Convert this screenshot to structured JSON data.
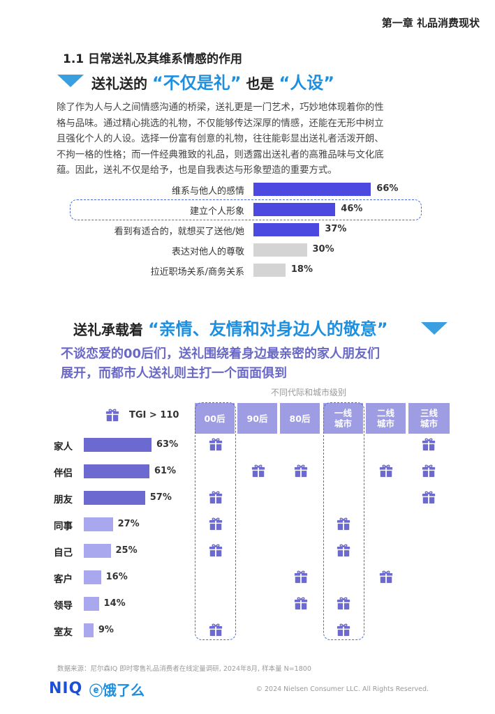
{
  "chapter": "第一章 礼品消费现状",
  "section_title": "1.1 日常送礼及其维系情感的作用",
  "headline1": {
    "prefix": "送礼送的",
    "highlight1": "“不仅是礼”",
    "middle": "也是",
    "highlight2": "“人设”"
  },
  "paragraph": [
    "除了作为人与人之间情感沟通的桥梁，送礼更是一门艺术，巧妙地体现着你的性",
    "格与品味。通过精心挑选的礼物，不仅能够传达深厚的情感，还能在无形中树立",
    "且强化个人的人设。选择一份富有创意的礼物，往往能彰显出送礼者活泼开朗、",
    "不拘一格的性格；而一件经典雅致的礼品，则透露出送礼者的高雅品味与文化底",
    "蕴。因此，送礼不仅是给予，也是自我表达与形象塑造的重要方式。"
  ],
  "motive_chart": {
    "type": "bar",
    "categories": [
      "维系与他人的感情",
      "建立个人形象",
      "看到有适合的，就想买了送他/她",
      "表达对他人的尊敬",
      "拉近职场关系/商务关系"
    ],
    "values": [
      66,
      46,
      37,
      30,
      18
    ],
    "labels": [
      "66%",
      "46%",
      "37%",
      "30%",
      "18%"
    ],
    "colors": [
      "#4b49e0",
      "#4b49e0",
      "#4b49e0",
      "#d4d4d4",
      "#d4d4d4"
    ],
    "highlighted": "建立个人形象"
  },
  "headline2": {
    "prefix": "送礼承载着",
    "highlight": "“亲情、友情和对身边人的敬意”"
  },
  "subheadline": [
    "不谈恋爱的00后们，送礼围绕着身边最亲密的家人朋友们",
    "展开，而都市人送礼则主打一个面面俱到"
  ],
  "recipients_chart": {
    "type": "bar",
    "group_header_title": "不同代际和城市级别",
    "legend": "TGI > 110",
    "categories": [
      "家人",
      "伴侣",
      "朋友",
      "同事",
      "自己",
      "客户",
      "领导",
      "室友"
    ],
    "values": [
      63,
      61,
      57,
      27,
      25,
      16,
      14,
      9
    ],
    "labels": [
      "63%",
      "61%",
      "57%",
      "27%",
      "25%",
      "16%",
      "14%",
      "9%"
    ],
    "colors": [
      "#6c6ad0",
      "#6c6ad0",
      "#6c6ad0",
      "#a9a7ee",
      "#a9a7ee",
      "#a9a7ee",
      "#a9a7ee",
      "#a9a7ee"
    ],
    "columns": [
      {
        "line1": "00后",
        "line2": ""
      },
      {
        "line1": "90后",
        "line2": ""
      },
      {
        "line1": "80后",
        "line2": ""
      },
      {
        "line1": "一线",
        "line2": "城市"
      },
      {
        "line1": "二线",
        "line2": "城市"
      },
      {
        "line1": "三线",
        "line2": "城市"
      }
    ],
    "highlighted_columns": [
      "00后",
      "一线城市"
    ],
    "tgi_matrix": [
      [
        1,
        0,
        0,
        0,
        0,
        1
      ],
      [
        0,
        1,
        1,
        0,
        1,
        1
      ],
      [
        1,
        0,
        0,
        0,
        0,
        1
      ],
      [
        1,
        0,
        0,
        1,
        0,
        0
      ],
      [
        1,
        0,
        0,
        1,
        0,
        0
      ],
      [
        0,
        0,
        1,
        0,
        1,
        0
      ],
      [
        0,
        0,
        1,
        1,
        0,
        0
      ],
      [
        1,
        0,
        0,
        1,
        0,
        0
      ]
    ]
  },
  "source_note": "数据来源：尼尔森IQ 即时零售礼品消费者在线定量调研, 2024年8月, 样本量 N=1800",
  "copyright": "© 2024 Nielsen Consumer LLC. All Rights Reserved.",
  "logos": {
    "niq": "NIQ",
    "eleme": "饿了么"
  },
  "icons": {
    "gift": "gift-icon",
    "triangle": "triangle-down-icon"
  },
  "accent_colors": {
    "blue": "#1d8fe1",
    "purple": "#6a68c7",
    "header": "#9e9ce3"
  }
}
